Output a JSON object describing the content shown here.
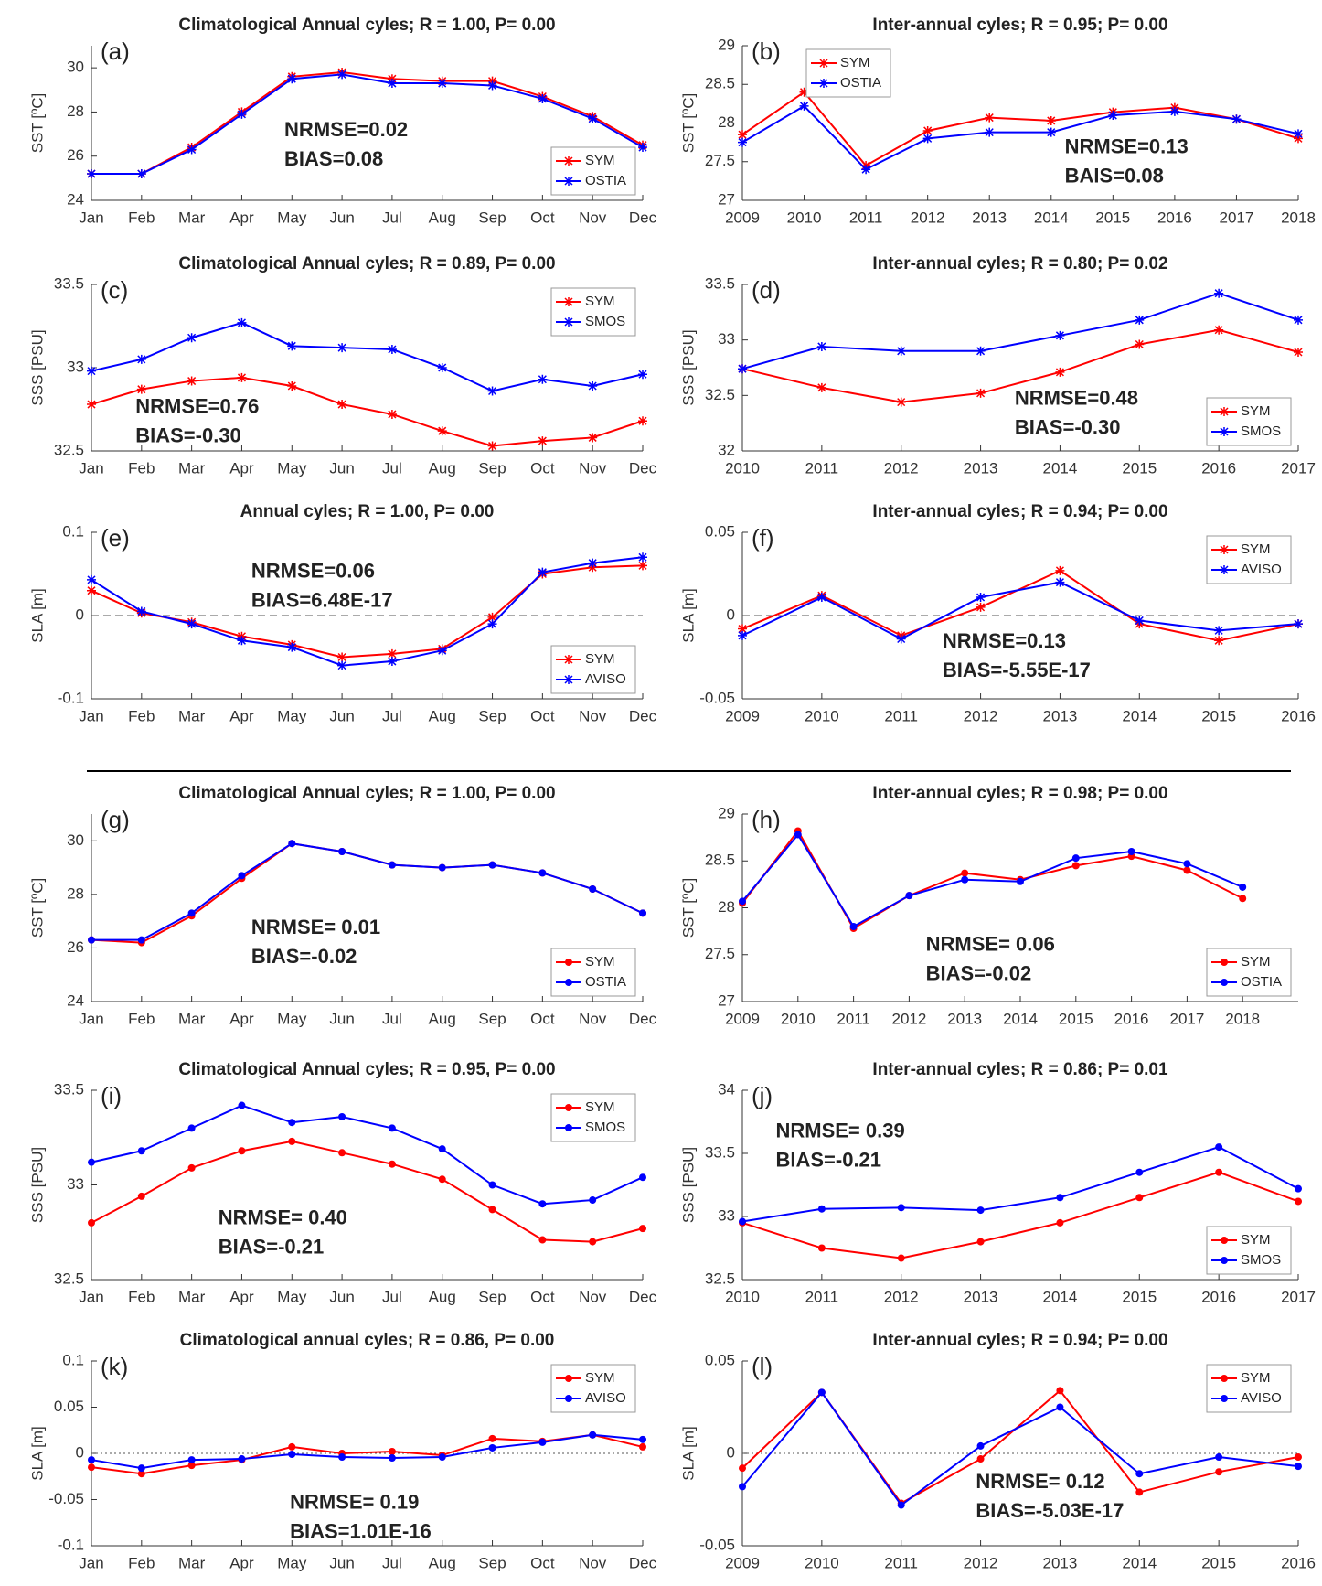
{
  "chart_data": [
    {
      "type": "line",
      "panel": "(a)",
      "title": "Climatological Annual cyles; R = 1.00, P= 0.00",
      "ylabel": "SST [ºC]",
      "categories": [
        "Jan",
        "Feb",
        "Mar",
        "Apr",
        "May",
        "Jun",
        "Jul",
        "Aug",
        "Sep",
        "Oct",
        "Nov",
        "Dec"
      ],
      "ylim": [
        24,
        31
      ],
      "yticks": [
        24,
        26,
        28,
        30
      ],
      "marker": "star",
      "legend": "lower right",
      "series": [
        {
          "name": "SYM",
          "color": "#ff0000",
          "values": [
            25.2,
            25.2,
            26.4,
            28.0,
            29.6,
            29.8,
            29.5,
            29.4,
            29.4,
            28.7,
            27.8,
            26.5
          ]
        },
        {
          "name": "OSTIA",
          "color": "#0000ff",
          "values": [
            25.2,
            25.2,
            26.3,
            27.9,
            29.5,
            29.7,
            29.3,
            29.3,
            29.2,
            28.6,
            27.7,
            26.4
          ]
        }
      ],
      "annotations": [
        "NRMSE=0.02",
        "BIAS=0.08"
      ]
    },
    {
      "type": "line",
      "panel": "(b)",
      "title": "Inter-annual cyles; R = 0.95; P= 0.00",
      "ylabel": "SST [ºC]",
      "x": [
        2009,
        2010,
        2011,
        2012,
        2013,
        2014,
        2015,
        2016,
        2017,
        2018
      ],
      "xlim": [
        2009,
        2018
      ],
      "xticks": [
        2009,
        2010,
        2011,
        2012,
        2013,
        2014,
        2015,
        2016,
        2017,
        2018
      ],
      "ylim": [
        27,
        29
      ],
      "yticks": [
        27,
        27.5,
        28,
        28.5,
        29
      ],
      "marker": "star",
      "legend": "upper left",
      "series": [
        {
          "name": "SYM",
          "color": "#ff0000",
          "values": [
            27.85,
            28.4,
            27.45,
            27.9,
            28.07,
            28.03,
            28.14,
            28.2,
            28.05,
            27.8
          ]
        },
        {
          "name": "OSTIA",
          "color": "#0000ff",
          "values": [
            27.75,
            28.22,
            27.4,
            27.8,
            27.88,
            27.88,
            28.1,
            28.15,
            28.05,
            27.86
          ]
        }
      ],
      "annotations": [
        "NRMSE=0.13",
        "BAIS=0.08"
      ]
    },
    {
      "type": "line",
      "panel": "(c)",
      "title": "Climatological Annual cyles; R = 0.89, P= 0.00",
      "ylabel": "SSS [PSU]",
      "categories": [
        "Jan",
        "Feb",
        "Mar",
        "Apr",
        "May",
        "Jun",
        "Jul",
        "Aug",
        "Sep",
        "Oct",
        "Nov",
        "Dec"
      ],
      "ylim": [
        32.5,
        33.5
      ],
      "yticks": [
        32.5,
        33,
        33.5
      ],
      "marker": "star",
      "legend": "upper right",
      "series": [
        {
          "name": "SYM",
          "color": "#ff0000",
          "values": [
            32.78,
            32.87,
            32.92,
            32.94,
            32.89,
            32.78,
            32.72,
            32.62,
            32.53,
            32.56,
            32.58,
            32.68
          ]
        },
        {
          "name": "SMOS",
          "color": "#0000ff",
          "values": [
            32.98,
            33.05,
            33.18,
            33.27,
            33.13,
            33.12,
            33.11,
            33.0,
            32.86,
            32.93,
            32.89,
            32.96
          ]
        }
      ],
      "annotations": [
        "NRMSE=0.76",
        "BIAS=-0.30"
      ]
    },
    {
      "type": "line",
      "panel": "(d)",
      "title": "Inter-annual cyles; R = 0.80; P= 0.02",
      "ylabel": "SSS [PSU]",
      "x": [
        2010,
        2011,
        2012,
        2013,
        2014,
        2015,
        2016,
        2017
      ],
      "xlim": [
        2010,
        2017
      ],
      "xticks": [
        2010,
        2011,
        2012,
        2013,
        2014,
        2015,
        2016,
        2017
      ],
      "ylim": [
        32,
        33.5
      ],
      "yticks": [
        32,
        32.5,
        33,
        33.5
      ],
      "marker": "star",
      "legend": "lower right",
      "series": [
        {
          "name": "SYM",
          "color": "#ff0000",
          "values": [
            32.74,
            32.57,
            32.44,
            32.52,
            32.71,
            32.96,
            33.09,
            32.89
          ]
        },
        {
          "name": "SMOS",
          "color": "#0000ff",
          "values": [
            32.74,
            32.94,
            32.9,
            32.9,
            33.04,
            33.18,
            33.42,
            33.18
          ]
        }
      ],
      "annotations": [
        "NRMSE=0.48",
        "BIAS=-0.30"
      ]
    },
    {
      "type": "line",
      "panel": "(e)",
      "title": "Annual cyles; R = 1.00, P= 0.00",
      "ylabel": "SLA [m]",
      "categories": [
        "Jan",
        "Feb",
        "Mar",
        "Apr",
        "May",
        "Jun",
        "Jul",
        "Aug",
        "Sep",
        "Oct",
        "Nov",
        "Dec"
      ],
      "ylim": [
        -0.1,
        0.1
      ],
      "yticks": [
        -0.1,
        0,
        0.1
      ],
      "marker": "star",
      "legend": "lower right",
      "zero_line": {
        "value": 0,
        "style": "dashed"
      },
      "series": [
        {
          "name": "SYM",
          "color": "#ff0000",
          "values": [
            0.03,
            0.003,
            -0.008,
            -0.025,
            -0.035,
            -0.05,
            -0.046,
            -0.04,
            -0.002,
            0.05,
            0.058,
            0.06
          ]
        },
        {
          "name": "AVISO",
          "color": "#0000ff",
          "values": [
            0.043,
            0.005,
            -0.01,
            -0.03,
            -0.038,
            -0.06,
            -0.055,
            -0.042,
            -0.01,
            0.052,
            0.063,
            0.07
          ]
        }
      ],
      "annotations": [
        "NRMSE=0.06",
        "BIAS=6.48E-17"
      ]
    },
    {
      "type": "line",
      "panel": "(f)",
      "title": "Inter-annual cyles; R = 0.94; P= 0.00",
      "ylabel": "SLA [m]",
      "x": [
        2009,
        2010,
        2011,
        2012,
        2013,
        2014,
        2015,
        2016
      ],
      "xlim": [
        2009,
        2016
      ],
      "xticks": [
        2009,
        2010,
        2011,
        2012,
        2013,
        2014,
        2015,
        2016
      ],
      "ylim": [
        -0.05,
        0.05
      ],
      "yticks": [
        -0.05,
        0,
        0.05
      ],
      "marker": "star",
      "legend": "upper right",
      "zero_line": {
        "value": 0,
        "style": "dashed"
      },
      "series": [
        {
          "name": "SYM",
          "color": "#ff0000",
          "values": [
            -0.008,
            0.012,
            -0.012,
            0.005,
            0.027,
            -0.005,
            -0.015,
            -0.005
          ]
        },
        {
          "name": "AVISO",
          "color": "#0000ff",
          "values": [
            -0.012,
            0.011,
            -0.014,
            0.011,
            0.02,
            -0.003,
            -0.009,
            -0.005
          ]
        }
      ],
      "annotations": [
        "NRMSE=0.13",
        "BIAS=-5.55E-17"
      ]
    },
    {
      "type": "line",
      "panel": "(g)",
      "title": "Climatological Annual cyles; R = 1.00, P= 0.00",
      "ylabel": "SST [ºC]",
      "categories": [
        "Jan",
        "Feb",
        "Mar",
        "Apr",
        "May",
        "Jun",
        "Jul",
        "Aug",
        "Sep",
        "Oct",
        "Nov",
        "Dec"
      ],
      "ylim": [
        24,
        31
      ],
      "yticks": [
        24,
        26,
        28,
        30
      ],
      "marker": "dot",
      "legend": "lower right",
      "series": [
        {
          "name": "SYM",
          "color": "#ff0000",
          "values": [
            26.3,
            26.2,
            27.2,
            28.6,
            29.9,
            29.6,
            29.1,
            29.0,
            29.1,
            28.8,
            28.2,
            27.3
          ]
        },
        {
          "name": "OSTIA",
          "color": "#0000ff",
          "values": [
            26.3,
            26.3,
            27.3,
            28.7,
            29.9,
            29.6,
            29.1,
            29.0,
            29.1,
            28.8,
            28.2,
            27.3
          ]
        }
      ],
      "annotations": [
        "NRMSE= 0.01",
        "BIAS=-0.02"
      ]
    },
    {
      "type": "line",
      "panel": "(h)",
      "title": "Inter-annual cyles; R = 0.98; P= 0.00",
      "ylabel": "SST [ºC]",
      "x": [
        2009,
        2010,
        2011,
        2012,
        2013,
        2014,
        2015,
        2016,
        2017,
        2018
      ],
      "xlim": [
        2009,
        2019
      ],
      "xticks": [
        2009,
        2010,
        2011,
        2012,
        2013,
        2014,
        2015,
        2016,
        2017,
        2018
      ],
      "ylim": [
        27,
        29
      ],
      "yticks": [
        27,
        27.5,
        28,
        28.5,
        29
      ],
      "marker": "dot",
      "legend": "lower right",
      "series": [
        {
          "name": "SYM",
          "color": "#ff0000",
          "values": [
            28.05,
            28.82,
            27.78,
            28.13,
            28.37,
            28.3,
            28.45,
            28.55,
            28.4,
            28.1
          ]
        },
        {
          "name": "OSTIA",
          "color": "#0000ff",
          "values": [
            28.07,
            28.78,
            27.8,
            28.13,
            28.3,
            28.28,
            28.53,
            28.6,
            28.47,
            28.22
          ]
        }
      ],
      "annotations": [
        "NRMSE= 0.06",
        "BIAS=-0.02"
      ]
    },
    {
      "type": "line",
      "panel": "(i)",
      "title": "Climatological Annual cyles; R = 0.95, P= 0.00",
      "ylabel": "SSS [PSU]",
      "categories": [
        "Jan",
        "Feb",
        "Mar",
        "Apr",
        "May",
        "Jun",
        "Jul",
        "Aug",
        "Sep",
        "Oct",
        "Nov",
        "Dec"
      ],
      "ylim": [
        32.5,
        33.5
      ],
      "yticks": [
        32.5,
        33,
        33.5
      ],
      "marker": "dot",
      "legend": "upper right",
      "series": [
        {
          "name": "SYM",
          "color": "#ff0000",
          "values": [
            32.8,
            32.94,
            33.09,
            33.18,
            33.23,
            33.17,
            33.11,
            33.03,
            32.87,
            32.71,
            32.7,
            32.77
          ]
        },
        {
          "name": "SMOS",
          "color": "#0000ff",
          "values": [
            33.12,
            33.18,
            33.3,
            33.42,
            33.33,
            33.36,
            33.3,
            33.19,
            33.0,
            32.9,
            32.92,
            33.04
          ]
        }
      ],
      "annotations": [
        "NRMSE= 0.40",
        "BIAS=-0.21"
      ]
    },
    {
      "type": "line",
      "panel": "(j)",
      "title": "Inter-annual cyles; R = 0.86; P= 0.01",
      "ylabel": "SSS [PSU]",
      "x": [
        2010,
        2011,
        2012,
        2013,
        2014,
        2015,
        2016,
        2017
      ],
      "xlim": [
        2010,
        2017
      ],
      "xticks": [
        2010,
        2011,
        2012,
        2013,
        2014,
        2015,
        2016,
        2017
      ],
      "ylim": [
        32.5,
        34
      ],
      "yticks": [
        32.5,
        33,
        33.5,
        34
      ],
      "marker": "dot",
      "legend": "lower right",
      "series": [
        {
          "name": "SYM",
          "color": "#ff0000",
          "values": [
            32.95,
            32.75,
            32.67,
            32.8,
            32.95,
            33.15,
            33.35,
            33.12
          ]
        },
        {
          "name": "SMOS",
          "color": "#0000ff",
          "values": [
            32.96,
            33.06,
            33.07,
            33.05,
            33.15,
            33.35,
            33.55,
            33.22
          ]
        }
      ],
      "annotations": [
        "NRMSE= 0.39",
        "BIAS=-0.21"
      ]
    },
    {
      "type": "line",
      "panel": "(k)",
      "title": "Climatological annual cyles; R = 0.86, P= 0.00",
      "ylabel": "SLA [m]",
      "categories": [
        "Jan",
        "Feb",
        "Mar",
        "Apr",
        "May",
        "Jun",
        "Jul",
        "Aug",
        "Sep",
        "Oct",
        "Nov",
        "Dec"
      ],
      "ylim": [
        -0.1,
        0.1
      ],
      "yticks": [
        -0.1,
        -0.05,
        0,
        0.05,
        0.1
      ],
      "marker": "dot",
      "legend": "upper right",
      "zero_line": {
        "value": 0,
        "style": "dotted"
      },
      "series": [
        {
          "name": "SYM",
          "color": "#ff0000",
          "values": [
            -0.015,
            -0.022,
            -0.013,
            -0.007,
            0.007,
            0.0,
            0.002,
            -0.002,
            0.016,
            0.013,
            0.02,
            0.007
          ]
        },
        {
          "name": "AVISO",
          "color": "#0000ff",
          "values": [
            -0.007,
            -0.016,
            -0.007,
            -0.006,
            -0.001,
            -0.004,
            -0.005,
            -0.004,
            0.006,
            0.012,
            0.02,
            0.015
          ]
        }
      ],
      "annotations": [
        "NRMSE= 0.19",
        "BIAS=1.01E-16"
      ]
    },
    {
      "type": "line",
      "panel": "(l)",
      "title": "Inter-annual cyles; R = 0.94; P= 0.00",
      "ylabel": "SLA [m]",
      "x": [
        2009,
        2010,
        2011,
        2012,
        2013,
        2014,
        2015,
        2016
      ],
      "xlim": [
        2009,
        2016
      ],
      "xticks": [
        2009,
        2010,
        2011,
        2012,
        2013,
        2014,
        2015,
        2016
      ],
      "ylim": [
        -0.05,
        0.05
      ],
      "yticks": [
        -0.05,
        0,
        0.05
      ],
      "marker": "dot",
      "legend": "upper right",
      "zero_line": {
        "value": 0,
        "style": "dotted"
      },
      "series": [
        {
          "name": "SYM",
          "color": "#ff0000",
          "values": [
            -0.008,
            0.033,
            -0.027,
            -0.003,
            0.034,
            -0.021,
            -0.01,
            -0.002
          ]
        },
        {
          "name": "AVISO",
          "color": "#0000ff",
          "values": [
            -0.018,
            0.033,
            -0.028,
            0.004,
            0.025,
            -0.011,
            -0.002,
            -0.007
          ]
        }
      ],
      "annotations": [
        "NRMSE= 0.12",
        "BIAS=-5.03E-17"
      ]
    }
  ]
}
